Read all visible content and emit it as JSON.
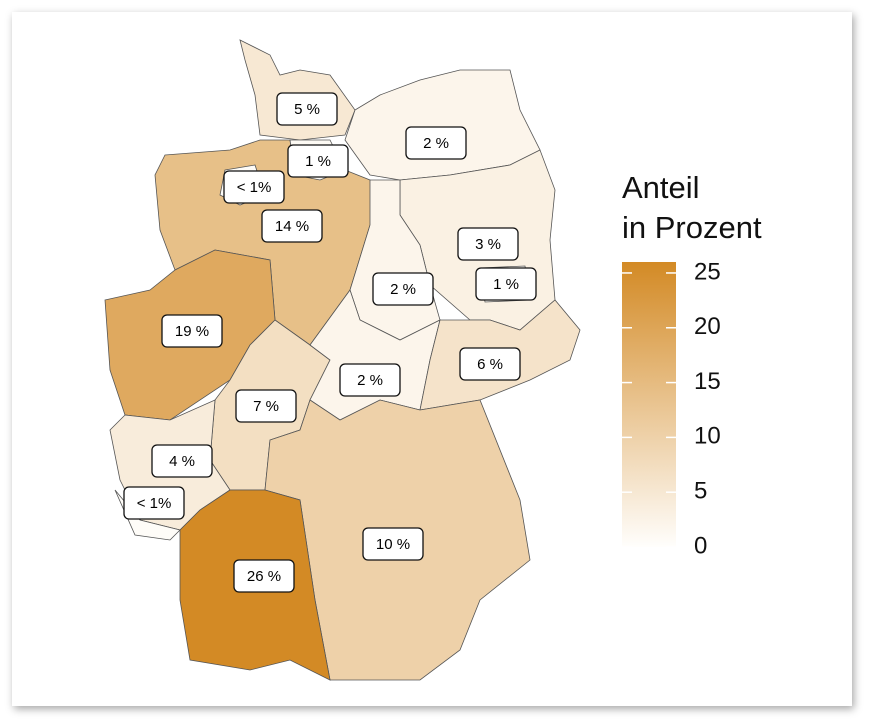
{
  "chart_data": {
    "type": "choropleth",
    "legend_title": [
      "Anteil",
      "in Prozent"
    ],
    "values": [
      5,
      2,
      14,
      1,
      0.5,
      3,
      1,
      2,
      19,
      7,
      2,
      6,
      4,
      0.5,
      10,
      26
    ],
    "value_labels": [
      "5 %",
      "2 %",
      "14 %",
      "1 %",
      "< 1%",
      "3 %",
      "1 %",
      "2 %",
      "19 %",
      "7 %",
      "2 %",
      "6 %",
      "4 %",
      "< 1%",
      "10 %",
      "26 %"
    ],
    "low_color": "#fffefc",
    "high_color": "#d38a25",
    "clim": [
      0,
      26
    ],
    "cticks": [
      0,
      5,
      10,
      15,
      20,
      25
    ]
  }
}
